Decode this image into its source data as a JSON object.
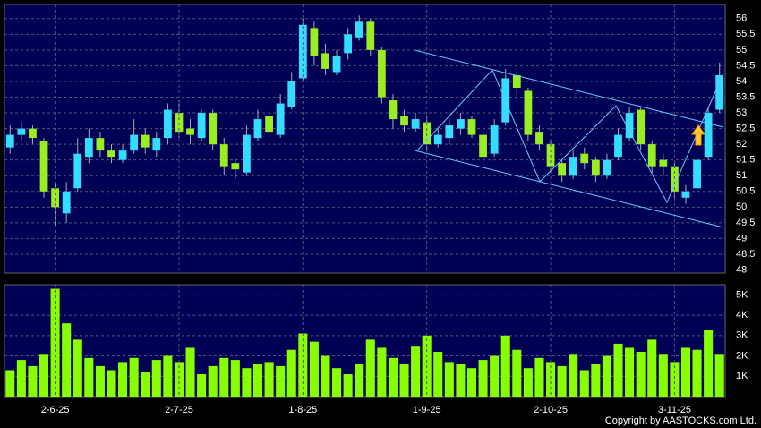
{
  "chart_data": [
    {
      "type": "candlestick",
      "open": [
        51.9,
        52.3,
        52.5,
        52.1,
        50.6,
        49.8,
        50.6,
        51.6,
        52.2,
        51.8,
        51.5,
        51.8,
        52.3,
        51.8,
        52.2,
        53.0,
        52.5,
        52.2,
        53.0,
        52.0,
        51.4,
        51.1,
        52.2,
        52.9,
        52.3,
        53.2,
        54.1,
        55.7,
        54.9,
        54.3,
        54.9,
        55.4,
        55.9,
        55.0,
        53.4,
        52.9,
        52.5,
        52.7,
        52.0,
        52.2,
        52.5,
        52.8,
        52.3,
        51.7,
        52.7,
        54.2,
        53.7,
        52.4,
        52.0,
        51.4,
        51.0,
        51.7,
        51.5,
        51.0,
        51.6,
        52.2,
        53.1,
        52.0,
        51.5,
        51.3,
        50.3,
        50.6,
        51.6,
        53.1
      ],
      "high": [
        52.6,
        52.7,
        52.6,
        52.2,
        50.8,
        50.8,
        52.2,
        52.5,
        52.4,
        52.0,
        52.0,
        52.8,
        52.5,
        52.4,
        53.3,
        53.4,
        52.8,
        53.1,
        53.1,
        52.2,
        51.5,
        52.6,
        53.1,
        53.0,
        53.6,
        54.3,
        56.0,
        55.9,
        55.2,
        55.0,
        55.7,
        56.1,
        56.0,
        55.1,
        53.6,
        53.1,
        53.0,
        52.9,
        52.5,
        52.8,
        53.0,
        52.9,
        52.4,
        52.8,
        54.4,
        54.3,
        53.8,
        52.6,
        52.1,
        51.5,
        51.8,
        51.9,
        51.6,
        51.7,
        52.5,
        53.2,
        53.2,
        52.1,
        51.7,
        51.4,
        50.7,
        51.7,
        53.2,
        54.6
      ],
      "low": [
        51.7,
        52.1,
        52.0,
        50.3,
        49.4,
        49.5,
        50.5,
        51.4,
        51.6,
        51.4,
        51.4,
        51.7,
        51.7,
        51.6,
        52.0,
        52.2,
        52.0,
        52.1,
        51.8,
        51.0,
        50.9,
        51.0,
        52.1,
        52.2,
        52.2,
        53.1,
        54.0,
        54.5,
        54.2,
        54.2,
        54.7,
        55.3,
        54.8,
        53.3,
        52.5,
        52.4,
        52.4,
        51.8,
        51.9,
        52.0,
        52.3,
        52.2,
        51.3,
        51.6,
        52.6,
        53.5,
        52.1,
        51.8,
        51.1,
        50.8,
        50.9,
        51.2,
        50.8,
        50.9,
        51.5,
        52.1,
        51.8,
        51.1,
        51.0,
        50.3,
        50.1,
        50.5,
        51.5,
        53.0
      ],
      "close": [
        52.3,
        52.5,
        52.2,
        50.5,
        50.0,
        50.5,
        51.7,
        52.2,
        51.8,
        51.6,
        51.8,
        52.3,
        51.9,
        52.2,
        53.1,
        52.4,
        52.3,
        53.0,
        52.0,
        51.3,
        51.2,
        52.3,
        52.8,
        52.4,
        53.3,
        54.0,
        55.8,
        54.8,
        54.4,
        54.8,
        55.5,
        55.9,
        55.0,
        53.5,
        52.8,
        52.6,
        52.8,
        52.0,
        52.3,
        52.6,
        52.8,
        52.3,
        51.6,
        52.6,
        54.1,
        53.8,
        52.3,
        52.0,
        51.3,
        51.0,
        51.6,
        51.4,
        51.0,
        51.5,
        52.3,
        53.0,
        52.0,
        51.3,
        51.3,
        50.5,
        50.5,
        51.5,
        53.0,
        54.2
      ],
      "up_color": "#33ddff",
      "down_color": "#99ee22",
      "ylim": [
        47.9,
        56.45
      ],
      "yticks": [
        48,
        48.5,
        49,
        49.5,
        50,
        50.5,
        51,
        51.5,
        52,
        52.5,
        53,
        53.5,
        54,
        54.5,
        55,
        55.5,
        56
      ],
      "grid": true
    },
    {
      "type": "bar",
      "categories": [
        null,
        null,
        null,
        null,
        "2-6-25",
        null,
        null,
        null,
        null,
        null,
        null,
        null,
        null,
        null,
        null,
        "2-7-25",
        null,
        null,
        null,
        null,
        null,
        null,
        null,
        null,
        null,
        null,
        "1-8-25",
        null,
        null,
        null,
        null,
        null,
        null,
        null,
        null,
        null,
        null,
        "1-9-25",
        null,
        null,
        null,
        null,
        null,
        null,
        null,
        null,
        null,
        null,
        "2-10-25",
        null,
        null,
        null,
        null,
        null,
        null,
        null,
        null,
        null,
        null,
        "3-11-25",
        null,
        null,
        null,
        null
      ],
      "values": [
        1300,
        1800,
        1500,
        2100,
        5300,
        3600,
        2800,
        1900,
        1500,
        1300,
        1700,
        1900,
        1200,
        1800,
        2000,
        1700,
        2400,
        1100,
        1500,
        1900,
        1800,
        1400,
        1600,
        1700,
        1500,
        2300,
        3100,
        2700,
        2000,
        1400,
        1100,
        1600,
        2800,
        2400,
        1900,
        1600,
        2500,
        3000,
        2200,
        1700,
        1600,
        1400,
        1800,
        2000,
        3000,
        2300,
        1400,
        1900,
        1700,
        1500,
        2100,
        1300,
        1600,
        2000,
        2600,
        2400,
        2200,
        2800,
        2100,
        1700,
        2400,
        2300,
        3300,
        2100
      ],
      "color": "#88ff00",
      "ylim": [
        0,
        5500
      ],
      "yticks": [
        {
          "value": 1000,
          "label": "1K"
        },
        {
          "value": 2000,
          "label": "2K"
        },
        {
          "value": 3000,
          "label": "3K"
        },
        {
          "value": 4000,
          "label": "4K"
        },
        {
          "value": 5000,
          "label": "5K"
        }
      ],
      "grid": true
    }
  ],
  "copyright": "Copyright by AASTOCKS.com Ltd."
}
